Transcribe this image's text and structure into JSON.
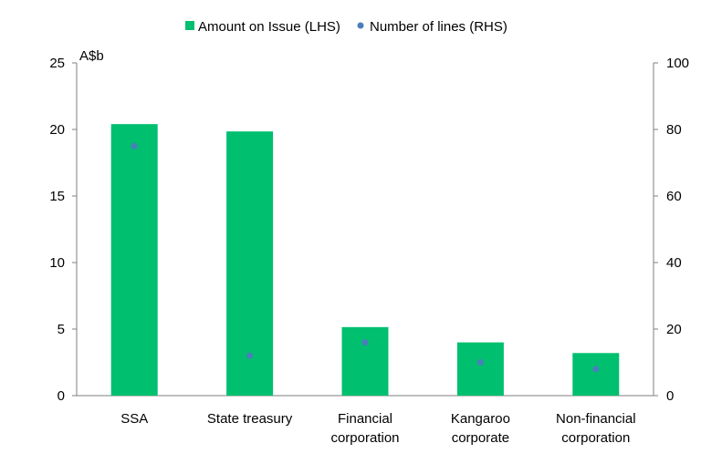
{
  "chart_data": {
    "type": "bar",
    "categories": [
      [
        "SSA"
      ],
      [
        "State treasury"
      ],
      [
        "Financial",
        "corporation"
      ],
      [
        "Kangaroo",
        "corporate"
      ],
      [
        "Non-financial",
        "corporation"
      ]
    ],
    "series": [
      {
        "name": "Amount on Issue (LHS)",
        "kind": "bar",
        "axis": "left",
        "color": "#00BF6F",
        "values": [
          20.4,
          19.85,
          5.15,
          4.0,
          3.2
        ]
      },
      {
        "name": "Number of lines (RHS)",
        "kind": "scatter",
        "axis": "right",
        "color": "#4A7EBB",
        "values": [
          75,
          12,
          16,
          10,
          8
        ]
      }
    ],
    "y_left": {
      "unit_label": "A$b",
      "ylim": [
        0,
        25
      ],
      "ticks": [
        0,
        5,
        10,
        15,
        20,
        25
      ]
    },
    "y_right": {
      "ylim": [
        0,
        100
      ],
      "ticks": [
        0,
        20,
        40,
        60,
        80,
        100
      ]
    },
    "legend": "top-center",
    "grid": false
  }
}
